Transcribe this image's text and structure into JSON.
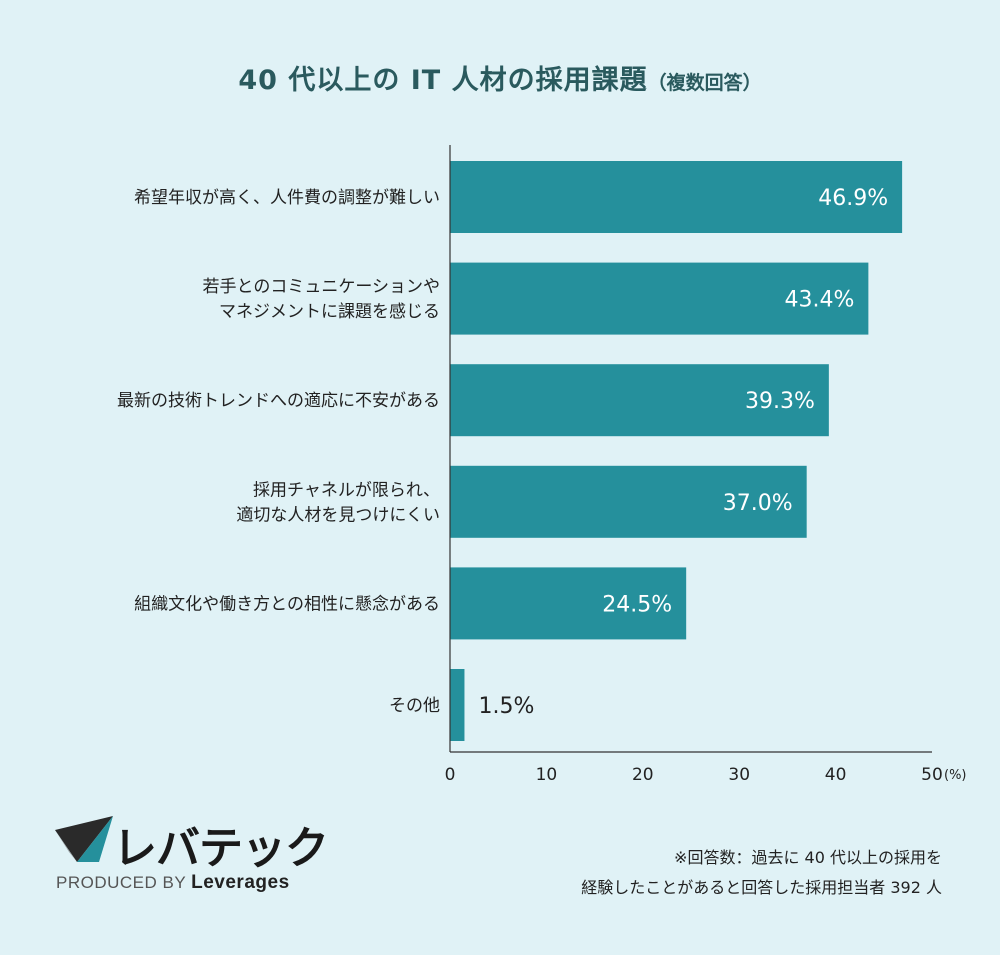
{
  "title": {
    "main": "40 代以上の IT 人材の採用課題",
    "sub": "（複数回答）"
  },
  "colors": {
    "background": "#e0f2f6",
    "bar": "#25909c",
    "title": "#2a5a5e"
  },
  "chart_data": {
    "type": "bar",
    "orientation": "horizontal",
    "categories": [
      [
        "希望年収が高く、人件費の調整が難しい"
      ],
      [
        "若手とのコミュニケーションや",
        "マネジメントに課題を感じる"
      ],
      [
        "最新の技術トレンドへの適応に不安がある"
      ],
      [
        "採用チャネルが限られ、",
        "適切な人材を見つけにくい"
      ],
      [
        "組織文化や働き方との相性に懸念がある"
      ],
      [
        "その他"
      ]
    ],
    "values": [
      46.9,
      43.4,
      39.3,
      37.0,
      24.5,
      1.5
    ],
    "value_labels": [
      "46.9%",
      "43.4%",
      "39.3%",
      "37.0%",
      "24.5%",
      "1.5%"
    ],
    "xlim": [
      0,
      50
    ],
    "xticks": [
      "0",
      "10",
      "20",
      "30",
      "40",
      "50"
    ],
    "x_unit": "(%)",
    "grid": false
  },
  "logo": {
    "brand": "レバテック",
    "produced_by": "PRODUCED BY",
    "company": "Leverages"
  },
  "note": {
    "line1": "※回答数：過去に 40 代以上の採用を",
    "line2": "経験したことがあると回答した採用担当者 392 人"
  }
}
